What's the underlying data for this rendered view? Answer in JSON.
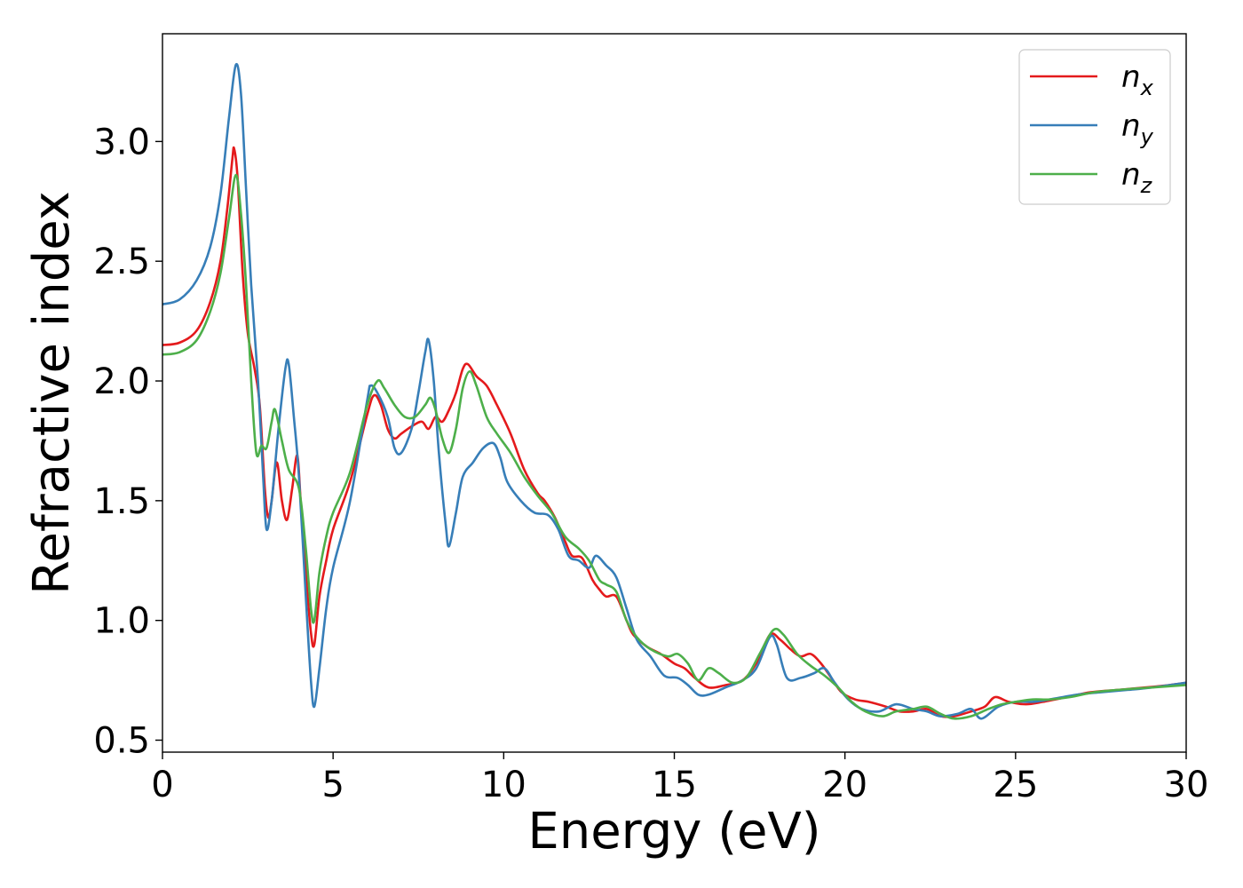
{
  "chart_data": {
    "type": "line",
    "title": "",
    "xlabel": "Energy (eV)",
    "ylabel": "Refractive index",
    "xlim": [
      0,
      30
    ],
    "ylim": [
      0.45,
      3.45
    ],
    "xticks": [
      0,
      5,
      10,
      15,
      20,
      25,
      30
    ],
    "yticks": [
      0.5,
      1.0,
      1.5,
      2.0,
      2.5,
      3.0
    ],
    "xtick_labels": [
      "0",
      "5",
      "10",
      "15",
      "20",
      "25",
      "30"
    ],
    "ytick_labels": [
      "0.5",
      "1.0",
      "1.5",
      "2.0",
      "2.5",
      "3.0"
    ],
    "grid": false,
    "legend": "top-right",
    "series": [
      {
        "name": "x",
        "color": "#e41a1c",
        "points": [
          [
            0,
            2.15
          ],
          [
            0.5,
            2.16
          ],
          [
            1.0,
            2.21
          ],
          [
            1.4,
            2.33
          ],
          [
            1.7,
            2.5
          ],
          [
            1.9,
            2.72
          ],
          [
            2.05,
            2.93
          ],
          [
            2.1,
            2.97
          ],
          [
            2.2,
            2.85
          ],
          [
            2.35,
            2.45
          ],
          [
            2.5,
            2.2
          ],
          [
            2.7,
            2.05
          ],
          [
            2.85,
            1.9
          ],
          [
            3.0,
            1.55
          ],
          [
            3.1,
            1.43
          ],
          [
            3.2,
            1.5
          ],
          [
            3.35,
            1.66
          ],
          [
            3.5,
            1.5
          ],
          [
            3.65,
            1.42
          ],
          [
            3.8,
            1.55
          ],
          [
            3.95,
            1.69
          ],
          [
            4.05,
            1.5
          ],
          [
            4.2,
            1.2
          ],
          [
            4.35,
            0.95
          ],
          [
            4.45,
            0.9
          ],
          [
            4.6,
            1.1
          ],
          [
            4.8,
            1.25
          ],
          [
            5.0,
            1.38
          ],
          [
            5.5,
            1.58
          ],
          [
            6.0,
            1.86
          ],
          [
            6.2,
            1.94
          ],
          [
            6.4,
            1.9
          ],
          [
            6.6,
            1.8
          ],
          [
            6.8,
            1.76
          ],
          [
            7.0,
            1.78
          ],
          [
            7.3,
            1.81
          ],
          [
            7.6,
            1.83
          ],
          [
            7.8,
            1.8
          ],
          [
            8.0,
            1.85
          ],
          [
            8.2,
            1.83
          ],
          [
            8.4,
            1.88
          ],
          [
            8.6,
            1.95
          ],
          [
            8.8,
            2.05
          ],
          [
            8.95,
            2.07
          ],
          [
            9.2,
            2.02
          ],
          [
            9.5,
            1.98
          ],
          [
            9.8,
            1.9
          ],
          [
            10.2,
            1.78
          ],
          [
            10.6,
            1.63
          ],
          [
            11.0,
            1.53
          ],
          [
            11.2,
            1.5
          ],
          [
            11.5,
            1.43
          ],
          [
            11.8,
            1.33
          ],
          [
            12.0,
            1.27
          ],
          [
            12.3,
            1.26
          ],
          [
            12.6,
            1.17
          ],
          [
            12.8,
            1.13
          ],
          [
            13.0,
            1.1
          ],
          [
            13.3,
            1.1
          ],
          [
            13.6,
            1.0
          ],
          [
            13.8,
            0.94
          ],
          [
            14.2,
            0.89
          ],
          [
            14.6,
            0.86
          ],
          [
            15.0,
            0.82
          ],
          [
            15.3,
            0.8
          ],
          [
            15.6,
            0.76
          ],
          [
            16.0,
            0.72
          ],
          [
            16.5,
            0.73
          ],
          [
            17.0,
            0.75
          ],
          [
            17.4,
            0.82
          ],
          [
            17.8,
            0.94
          ],
          [
            18.1,
            0.92
          ],
          [
            18.4,
            0.88
          ],
          [
            18.7,
            0.85
          ],
          [
            19.0,
            0.86
          ],
          [
            19.3,
            0.82
          ],
          [
            19.6,
            0.76
          ],
          [
            19.9,
            0.7
          ],
          [
            20.3,
            0.67
          ],
          [
            20.7,
            0.66
          ],
          [
            21.2,
            0.64
          ],
          [
            21.6,
            0.62
          ],
          [
            22.0,
            0.62
          ],
          [
            22.4,
            0.63
          ],
          [
            22.8,
            0.6
          ],
          [
            23.2,
            0.6
          ],
          [
            23.7,
            0.62
          ],
          [
            24.1,
            0.64
          ],
          [
            24.4,
            0.68
          ],
          [
            24.8,
            0.66
          ],
          [
            25.3,
            0.65
          ],
          [
            25.8,
            0.66
          ],
          [
            26.5,
            0.68
          ],
          [
            27.2,
            0.7
          ],
          [
            28.0,
            0.71
          ],
          [
            28.8,
            0.72
          ],
          [
            29.5,
            0.73
          ],
          [
            30.0,
            0.74
          ]
        ]
      },
      {
        "name": "y",
        "color": "#377eb8",
        "points": [
          [
            0,
            2.32
          ],
          [
            0.5,
            2.34
          ],
          [
            1.0,
            2.42
          ],
          [
            1.4,
            2.56
          ],
          [
            1.7,
            2.78
          ],
          [
            1.95,
            3.1
          ],
          [
            2.15,
            3.32
          ],
          [
            2.3,
            3.2
          ],
          [
            2.45,
            2.8
          ],
          [
            2.6,
            2.4
          ],
          [
            2.8,
            2.0
          ],
          [
            2.95,
            1.6
          ],
          [
            3.05,
            1.38
          ],
          [
            3.2,
            1.5
          ],
          [
            3.4,
            1.8
          ],
          [
            3.6,
            2.05
          ],
          [
            3.7,
            2.07
          ],
          [
            3.85,
            1.85
          ],
          [
            4.0,
            1.6
          ],
          [
            4.2,
            1.1
          ],
          [
            4.35,
            0.75
          ],
          [
            4.45,
            0.64
          ],
          [
            4.6,
            0.8
          ],
          [
            4.8,
            1.05
          ],
          [
            5.0,
            1.22
          ],
          [
            5.5,
            1.5
          ],
          [
            6.0,
            1.92
          ],
          [
            6.1,
            1.98
          ],
          [
            6.3,
            1.95
          ],
          [
            6.6,
            1.85
          ],
          [
            6.8,
            1.72
          ],
          [
            7.0,
            1.7
          ],
          [
            7.3,
            1.8
          ],
          [
            7.5,
            1.95
          ],
          [
            7.7,
            2.12
          ],
          [
            7.8,
            2.17
          ],
          [
            7.95,
            2.0
          ],
          [
            8.1,
            1.7
          ],
          [
            8.3,
            1.4
          ],
          [
            8.4,
            1.31
          ],
          [
            8.6,
            1.45
          ],
          [
            8.8,
            1.6
          ],
          [
            9.1,
            1.66
          ],
          [
            9.4,
            1.72
          ],
          [
            9.7,
            1.74
          ],
          [
            9.9,
            1.68
          ],
          [
            10.1,
            1.58
          ],
          [
            10.5,
            1.5
          ],
          [
            10.9,
            1.45
          ],
          [
            11.3,
            1.44
          ],
          [
            11.6,
            1.38
          ],
          [
            11.9,
            1.27
          ],
          [
            12.2,
            1.25
          ],
          [
            12.5,
            1.22
          ],
          [
            12.7,
            1.27
          ],
          [
            13.0,
            1.23
          ],
          [
            13.3,
            1.18
          ],
          [
            13.6,
            1.05
          ],
          [
            13.9,
            0.92
          ],
          [
            14.3,
            0.85
          ],
          [
            14.7,
            0.77
          ],
          [
            15.1,
            0.76
          ],
          [
            15.4,
            0.73
          ],
          [
            15.7,
            0.69
          ],
          [
            16.0,
            0.69
          ],
          [
            16.5,
            0.72
          ],
          [
            17.0,
            0.75
          ],
          [
            17.4,
            0.8
          ],
          [
            17.8,
            0.93
          ],
          [
            18.0,
            0.9
          ],
          [
            18.3,
            0.76
          ],
          [
            18.7,
            0.76
          ],
          [
            19.1,
            0.78
          ],
          [
            19.4,
            0.8
          ],
          [
            19.7,
            0.74
          ],
          [
            20.1,
            0.67
          ],
          [
            20.5,
            0.63
          ],
          [
            21.0,
            0.62
          ],
          [
            21.5,
            0.65
          ],
          [
            22.0,
            0.63
          ],
          [
            22.4,
            0.62
          ],
          [
            22.8,
            0.6
          ],
          [
            23.3,
            0.61
          ],
          [
            23.7,
            0.63
          ],
          [
            24.0,
            0.59
          ],
          [
            24.5,
            0.64
          ],
          [
            25.0,
            0.66
          ],
          [
            25.5,
            0.66
          ],
          [
            26.0,
            0.67
          ],
          [
            26.8,
            0.69
          ],
          [
            27.5,
            0.7
          ],
          [
            28.3,
            0.71
          ],
          [
            29.0,
            0.72
          ],
          [
            30.0,
            0.74
          ]
        ]
      },
      {
        "name": "z",
        "color": "#4daf4a",
        "points": [
          [
            0,
            2.11
          ],
          [
            0.5,
            2.12
          ],
          [
            1.0,
            2.17
          ],
          [
            1.4,
            2.29
          ],
          [
            1.7,
            2.45
          ],
          [
            1.95,
            2.68
          ],
          [
            2.15,
            2.86
          ],
          [
            2.3,
            2.7
          ],
          [
            2.45,
            2.4
          ],
          [
            2.6,
            2.0
          ],
          [
            2.75,
            1.7
          ],
          [
            2.9,
            1.73
          ],
          [
            3.05,
            1.72
          ],
          [
            3.2,
            1.83
          ],
          [
            3.3,
            1.88
          ],
          [
            3.5,
            1.75
          ],
          [
            3.7,
            1.63
          ],
          [
            4.0,
            1.55
          ],
          [
            4.2,
            1.3
          ],
          [
            4.35,
            1.05
          ],
          [
            4.45,
            1.0
          ],
          [
            4.6,
            1.2
          ],
          [
            4.8,
            1.35
          ],
          [
            5.0,
            1.45
          ],
          [
            5.5,
            1.62
          ],
          [
            6.0,
            1.9
          ],
          [
            6.3,
            2.0
          ],
          [
            6.5,
            1.97
          ],
          [
            6.8,
            1.9
          ],
          [
            7.1,
            1.85
          ],
          [
            7.4,
            1.85
          ],
          [
            7.7,
            1.9
          ],
          [
            7.85,
            1.93
          ],
          [
            8.0,
            1.88
          ],
          [
            8.2,
            1.76
          ],
          [
            8.4,
            1.7
          ],
          [
            8.6,
            1.8
          ],
          [
            8.8,
            1.97
          ],
          [
            9.0,
            2.04
          ],
          [
            9.2,
            1.98
          ],
          [
            9.5,
            1.85
          ],
          [
            9.8,
            1.78
          ],
          [
            10.2,
            1.7
          ],
          [
            10.6,
            1.6
          ],
          [
            11.0,
            1.52
          ],
          [
            11.4,
            1.45
          ],
          [
            11.8,
            1.35
          ],
          [
            12.2,
            1.3
          ],
          [
            12.5,
            1.25
          ],
          [
            12.8,
            1.17
          ],
          [
            13.0,
            1.15
          ],
          [
            13.3,
            1.12
          ],
          [
            13.6,
            1.0
          ],
          [
            13.9,
            0.93
          ],
          [
            14.3,
            0.88
          ],
          [
            14.8,
            0.85
          ],
          [
            15.1,
            0.86
          ],
          [
            15.4,
            0.82
          ],
          [
            15.7,
            0.75
          ],
          [
            16.0,
            0.8
          ],
          [
            16.3,
            0.78
          ],
          [
            16.7,
            0.74
          ],
          [
            17.1,
            0.76
          ],
          [
            17.5,
            0.86
          ],
          [
            17.9,
            0.96
          ],
          [
            18.2,
            0.94
          ],
          [
            18.6,
            0.86
          ],
          [
            19.0,
            0.81
          ],
          [
            19.4,
            0.77
          ],
          [
            19.8,
            0.72
          ],
          [
            20.2,
            0.66
          ],
          [
            20.6,
            0.62
          ],
          [
            21.1,
            0.6
          ],
          [
            21.5,
            0.62
          ],
          [
            22.0,
            0.63
          ],
          [
            22.4,
            0.64
          ],
          [
            22.8,
            0.61
          ],
          [
            23.2,
            0.59
          ],
          [
            23.7,
            0.6
          ],
          [
            24.2,
            0.63
          ],
          [
            24.6,
            0.65
          ],
          [
            25.0,
            0.66
          ],
          [
            25.5,
            0.67
          ],
          [
            26.0,
            0.67
          ],
          [
            26.6,
            0.68
          ],
          [
            27.3,
            0.7
          ],
          [
            28.0,
            0.71
          ],
          [
            29.0,
            0.72
          ],
          [
            30.0,
            0.73
          ]
        ]
      }
    ]
  }
}
